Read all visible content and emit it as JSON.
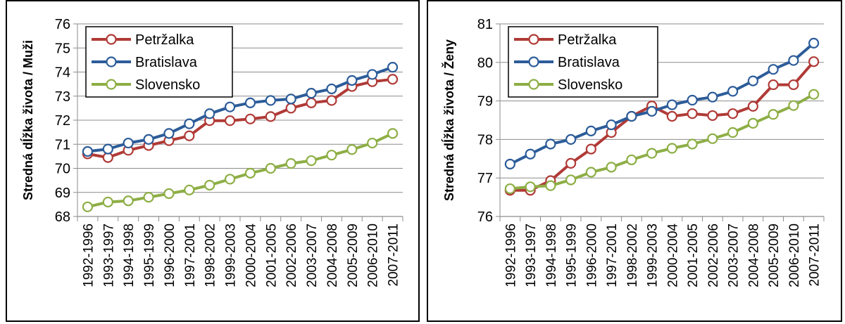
{
  "chart_data": [
    {
      "type": "line",
      "ylabel": "Stredná dĺžka života / Muži",
      "xlabel": "",
      "ylim": [
        68,
        76
      ],
      "yticks": [
        "68",
        "69",
        "70",
        "71",
        "72",
        "73",
        "74",
        "75",
        "76"
      ],
      "categories": [
        "1992-1996",
        "1993-1997",
        "1994-1998",
        "1995-1999",
        "1996-2000",
        "1997-2001",
        "1998-2002",
        "1999-2003",
        "2000-2004",
        "2001-2005",
        "2002-2006",
        "2003-2007",
        "2004-2008",
        "2005-2009",
        "2006-2010",
        "2007-2011"
      ],
      "grid": true,
      "legend_position": "top-left",
      "series": [
        {
          "name": "Petržalka",
          "color": "#b03a36",
          "values": [
            70.6,
            70.45,
            70.75,
            70.95,
            71.15,
            71.35,
            71.98,
            71.98,
            72.05,
            72.15,
            72.5,
            72.72,
            72.82,
            73.4,
            73.6,
            73.7
          ]
        },
        {
          "name": "Bratislava",
          "color": "#2c5c99",
          "values": [
            70.7,
            70.8,
            71.05,
            71.2,
            71.45,
            71.85,
            72.27,
            72.55,
            72.72,
            72.82,
            72.88,
            73.12,
            73.3,
            73.65,
            73.9,
            74.2
          ]
        },
        {
          "name": "Slovensko",
          "color": "#8dae45",
          "values": [
            68.4,
            68.6,
            68.65,
            68.8,
            68.95,
            69.1,
            69.3,
            69.55,
            69.8,
            70.0,
            70.2,
            70.32,
            70.55,
            70.78,
            71.05,
            71.45
          ]
        }
      ]
    },
    {
      "type": "line",
      "ylabel": "Stredná dĺžka života / Ženy",
      "xlabel": "",
      "ylim": [
        76,
        81
      ],
      "yticks": [
        "76",
        "77",
        "78",
        "79",
        "80",
        "81"
      ],
      "categories": [
        "1992-1996",
        "1993-1997",
        "1994-1998",
        "1995-1999",
        "1996-2000",
        "1997-2001",
        "1998-2002",
        "1999-2003",
        "2000-2004",
        "2001-2005",
        "2002-2006",
        "2003-2007",
        "2004-2008",
        "2005-2009",
        "2006-2010",
        "2007-2011"
      ],
      "grid": true,
      "legend_position": "top-left",
      "series": [
        {
          "name": "Petržalka",
          "color": "#b03a36",
          "values": [
            76.68,
            76.68,
            76.93,
            77.38,
            77.75,
            78.18,
            78.6,
            78.87,
            78.6,
            78.67,
            78.62,
            78.67,
            78.86,
            79.42,
            79.42,
            80.02
          ]
        },
        {
          "name": "Bratislava",
          "color": "#2c5c99",
          "values": [
            77.36,
            77.62,
            77.88,
            78.0,
            78.22,
            78.38,
            78.6,
            78.73,
            78.9,
            79.02,
            79.1,
            79.25,
            79.52,
            79.82,
            80.05,
            80.5
          ]
        },
        {
          "name": "Slovensko",
          "color": "#8dae45",
          "values": [
            76.72,
            76.77,
            76.8,
            76.95,
            77.15,
            77.28,
            77.47,
            77.64,
            77.77,
            77.88,
            78.02,
            78.18,
            78.42,
            78.65,
            78.88,
            79.17
          ]
        }
      ]
    }
  ]
}
